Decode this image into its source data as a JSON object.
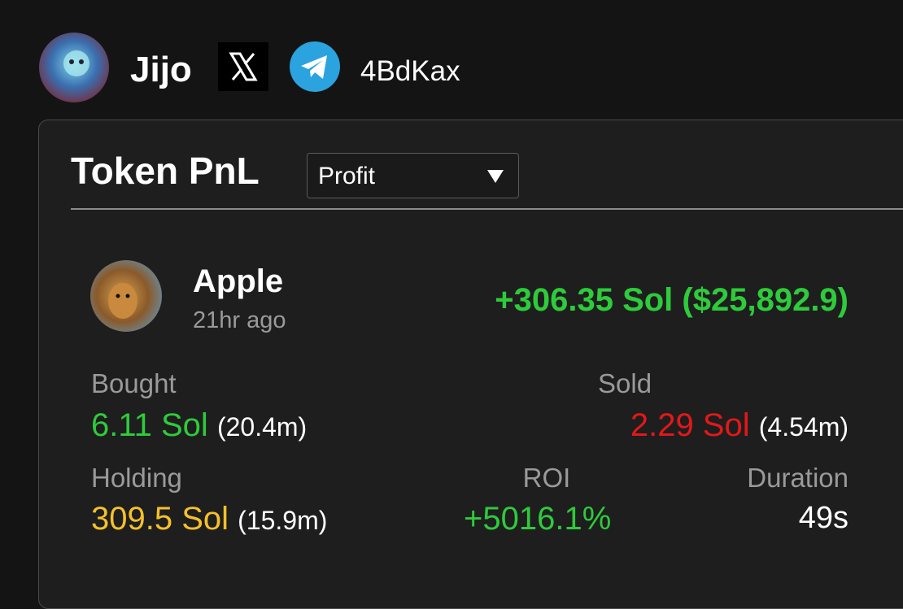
{
  "header": {
    "name": "Jijo",
    "handle": "4BdKax"
  },
  "card": {
    "title": "Token PnL",
    "filter": "Profit"
  },
  "token": {
    "name": "Apple",
    "time": "21hr ago",
    "pnl": "+306.35 Sol ($25,892.9)"
  },
  "stats": {
    "bought": {
      "label": "Bought",
      "amount": "6.11 Sol",
      "tokens": "(20.4m)"
    },
    "sold": {
      "label": "Sold",
      "amount": "2.29 Sol",
      "tokens": "(4.54m)"
    },
    "holding": {
      "label": "Holding",
      "amount": "309.5 Sol",
      "tokens": "(15.9m)"
    },
    "roi": {
      "label": "ROI",
      "value": "+5016.1%"
    },
    "duration": {
      "label": "Duration",
      "value": "49s"
    }
  }
}
